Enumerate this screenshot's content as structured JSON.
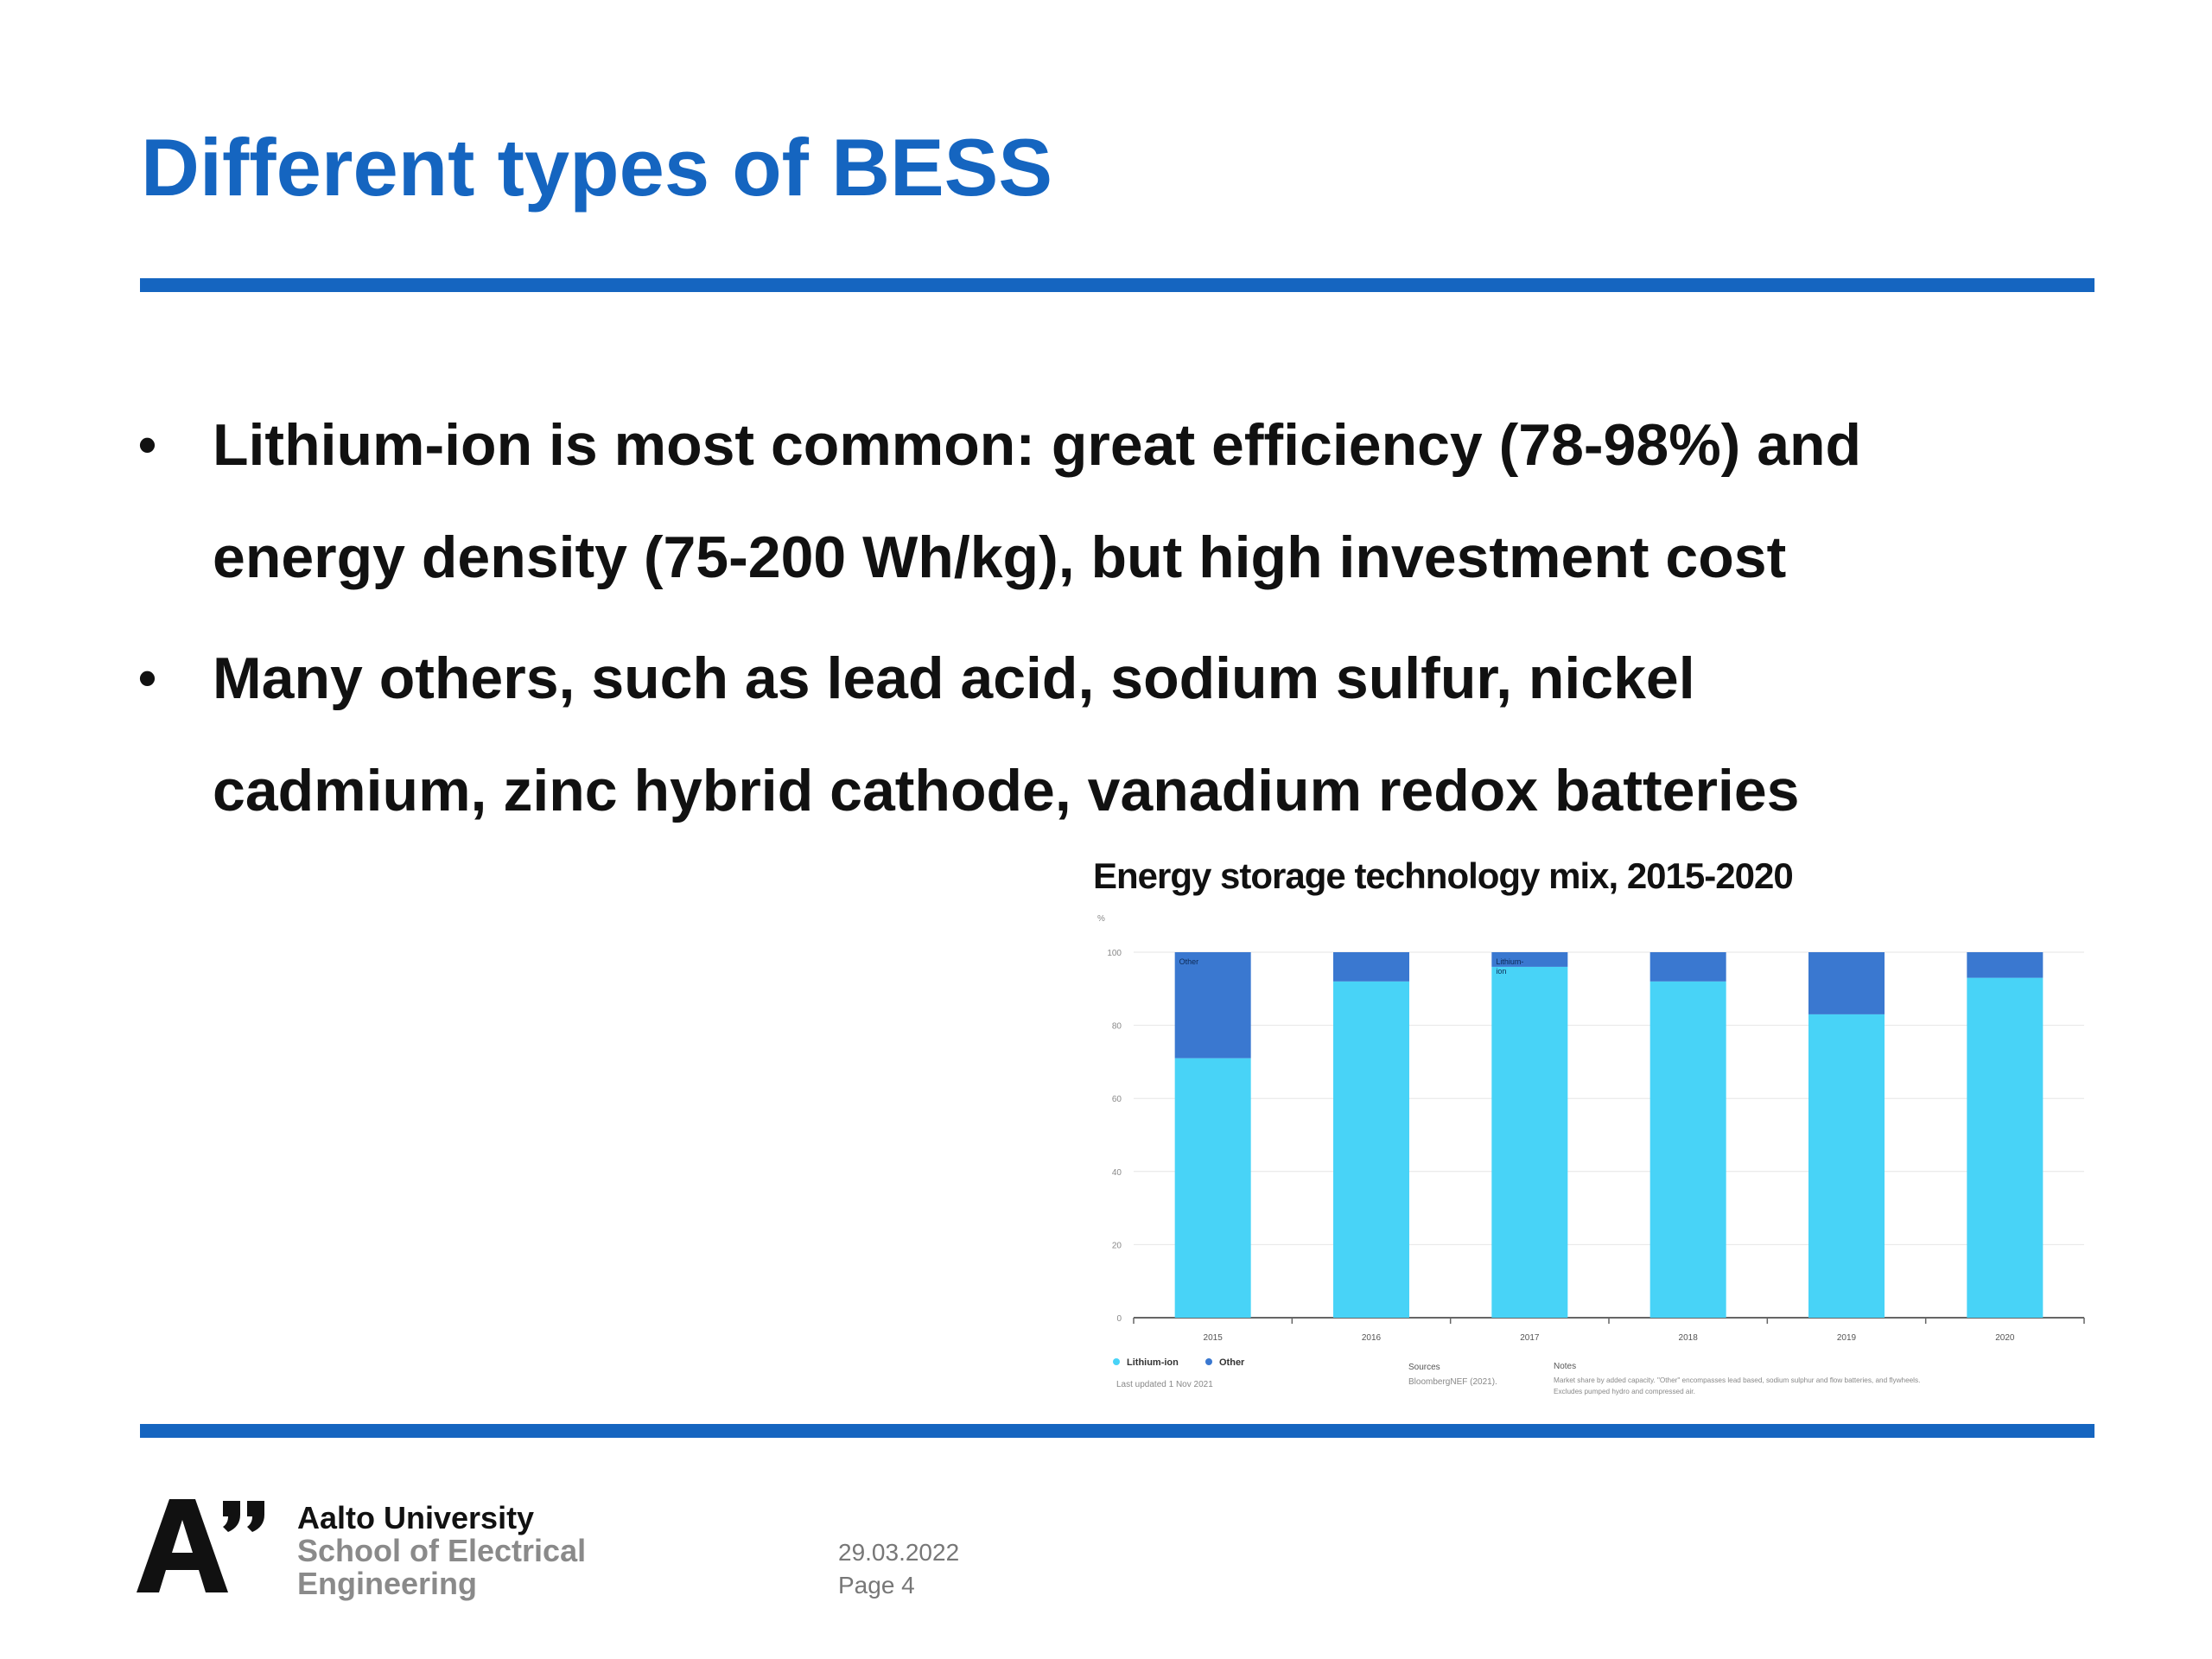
{
  "slide": {
    "title": "Different types of BESS",
    "bullets": [
      {
        "line1": "Lithium-ion is most common: great efficiency (78-98%) and",
        "line2": "energy density (75-200 Wh/kg), but high investment cost"
      },
      {
        "line1": "Many others, such as lead acid, sodium sulfur, nickel",
        "line2": "cadmium, zinc hybrid cathode, vanadium redox batteries"
      }
    ],
    "bullet_glyph": "•"
  },
  "chart_data": {
    "type": "bar",
    "stacked": true,
    "title": "Energy storage technology mix, 2015-2020",
    "ylabel": "%",
    "ylim": [
      0,
      100
    ],
    "yticks": [
      0,
      20,
      40,
      60,
      80,
      100
    ],
    "categories": [
      "2015",
      "2016",
      "2017",
      "2018",
      "2019",
      "2020"
    ],
    "series": [
      {
        "name": "Lithium-ion",
        "color": "#48d3f7",
        "values": [
          71,
          92,
          96,
          92,
          83,
          93
        ]
      },
      {
        "name": "Other",
        "color": "#3a78d0",
        "values": [
          29,
          8,
          4,
          8,
          17,
          7
        ]
      }
    ],
    "bar_annotations": [
      {
        "category": "2015",
        "text": "Other"
      },
      {
        "category": "2017",
        "text": "Lithium-ion"
      }
    ],
    "legend_placement": "bottom-left",
    "grid": true,
    "last_updated": "Last updated 1 Nov 2021",
    "sources_label": "Sources",
    "sources_text": "BloombergNEF (2021).",
    "notes_label": "Notes",
    "notes_line1": "Market share by added capacity. \"Other\" encompasses lead based, sodium sulphur and flow batteries, and flywheels.",
    "notes_line2": "Excludes pumped hydro and compressed air."
  },
  "footer": {
    "logo_letters": "A\"",
    "org_line1": "Aalto University",
    "org_line2": "School of Electrical",
    "org_line3": "Engineering",
    "date": "29.03.2022",
    "page": "Page 4"
  },
  "colors": {
    "accent": "#1565c0",
    "lithium": "#48d3f7",
    "other": "#3a78d0"
  }
}
